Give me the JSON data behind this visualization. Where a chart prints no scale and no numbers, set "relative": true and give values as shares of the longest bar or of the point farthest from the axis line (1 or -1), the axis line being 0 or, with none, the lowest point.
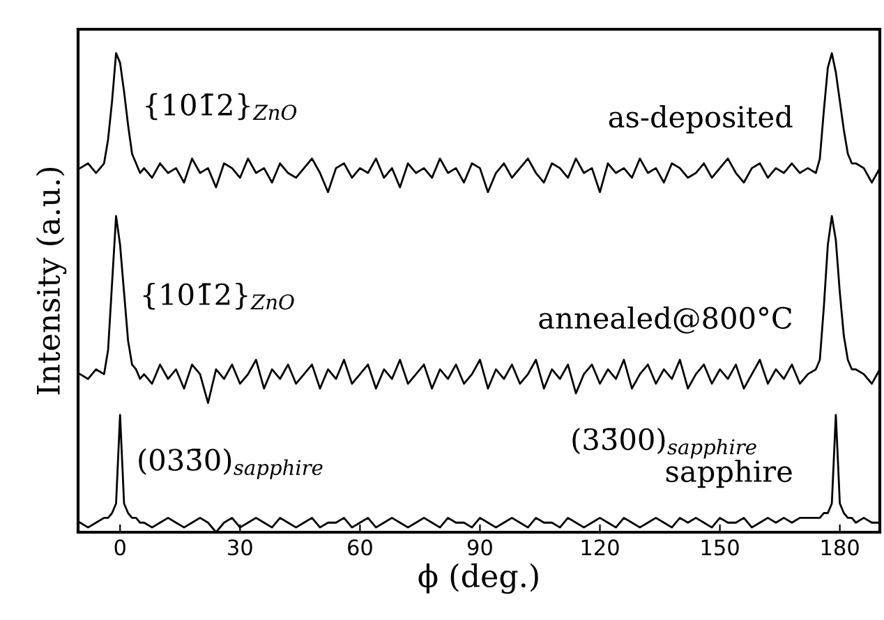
{
  "chart_data": {
    "type": "line",
    "relative": true,
    "xlabel": "ϕ (deg.)",
    "ylabel": "Intensity (a.u.)",
    "xlim": [
      -10.5,
      190
    ],
    "xticks": [
      0,
      30,
      60,
      90,
      120,
      150,
      180
    ],
    "grid": false,
    "marker": "none",
    "line_style": "solid",
    "x": [
      -10,
      -8,
      -6,
      -4,
      -3,
      -2,
      -1,
      0,
      1,
      2,
      3,
      4,
      5,
      6,
      8,
      10,
      12,
      14,
      16,
      18,
      20,
      22,
      24,
      26,
      28,
      30,
      32,
      34,
      36,
      38,
      40,
      42,
      44,
      46,
      48,
      50,
      52,
      54,
      56,
      58,
      60,
      62,
      64,
      66,
      68,
      70,
      72,
      74,
      76,
      78,
      80,
      82,
      84,
      86,
      88,
      90,
      92,
      94,
      96,
      98,
      100,
      102,
      104,
      106,
      108,
      110,
      112,
      114,
      116,
      118,
      120,
      122,
      124,
      126,
      128,
      130,
      132,
      134,
      136,
      138,
      140,
      142,
      144,
      146,
      148,
      150,
      152,
      154,
      156,
      158,
      160,
      162,
      164,
      166,
      168,
      170,
      172,
      174,
      175,
      176,
      177,
      178,
      179,
      180,
      181,
      182,
      183,
      184,
      186,
      188,
      190
    ],
    "series": [
      {
        "name": "as-deposited",
        "color": "#000000",
        "values": [
          0.76,
          0.77,
          0.75,
          0.77,
          0.82,
          0.9,
          1.0,
          0.98,
          0.92,
          0.85,
          0.79,
          0.77,
          0.75,
          0.76,
          0.74,
          0.77,
          0.75,
          0.76,
          0.73,
          0.78,
          0.75,
          0.76,
          0.72,
          0.77,
          0.76,
          0.74,
          0.78,
          0.75,
          0.76,
          0.73,
          0.77,
          0.75,
          0.74,
          0.76,
          0.78,
          0.75,
          0.71,
          0.76,
          0.77,
          0.74,
          0.76,
          0.75,
          0.78,
          0.74,
          0.76,
          0.72,
          0.77,
          0.75,
          0.76,
          0.74,
          0.78,
          0.75,
          0.76,
          0.73,
          0.77,
          0.76,
          0.71,
          0.75,
          0.77,
          0.74,
          0.76,
          0.78,
          0.75,
          0.73,
          0.77,
          0.76,
          0.74,
          0.78,
          0.75,
          0.76,
          0.71,
          0.77,
          0.75,
          0.76,
          0.74,
          0.78,
          0.75,
          0.76,
          0.73,
          0.77,
          0.76,
          0.74,
          0.75,
          0.77,
          0.74,
          0.76,
          0.78,
          0.75,
          0.73,
          0.76,
          0.77,
          0.74,
          0.76,
          0.75,
          0.77,
          0.75,
          0.76,
          0.75,
          0.78,
          0.88,
          0.97,
          1.0,
          0.96,
          0.9,
          0.84,
          0.79,
          0.77,
          0.77,
          0.76,
          0.73,
          0.76
        ]
      },
      {
        "name": "annealed@800°C",
        "color": "#000000",
        "values": [
          0.33,
          0.32,
          0.34,
          0.33,
          0.38,
          0.52,
          0.66,
          0.6,
          0.5,
          0.4,
          0.35,
          0.34,
          0.32,
          0.33,
          0.31,
          0.35,
          0.32,
          0.34,
          0.3,
          0.35,
          0.33,
          0.27,
          0.34,
          0.32,
          0.35,
          0.31,
          0.33,
          0.36,
          0.3,
          0.34,
          0.32,
          0.35,
          0.31,
          0.33,
          0.35,
          0.3,
          0.34,
          0.32,
          0.36,
          0.31,
          0.33,
          0.35,
          0.3,
          0.34,
          0.32,
          0.36,
          0.31,
          0.33,
          0.35,
          0.3,
          0.34,
          0.32,
          0.35,
          0.31,
          0.33,
          0.36,
          0.3,
          0.34,
          0.32,
          0.35,
          0.31,
          0.33,
          0.36,
          0.3,
          0.34,
          0.32,
          0.35,
          0.29,
          0.33,
          0.35,
          0.31,
          0.34,
          0.32,
          0.36,
          0.3,
          0.33,
          0.35,
          0.31,
          0.34,
          0.32,
          0.36,
          0.3,
          0.33,
          0.35,
          0.31,
          0.34,
          0.32,
          0.35,
          0.3,
          0.33,
          0.36,
          0.31,
          0.34,
          0.32,
          0.35,
          0.31,
          0.33,
          0.34,
          0.36,
          0.47,
          0.6,
          0.66,
          0.61,
          0.5,
          0.41,
          0.36,
          0.34,
          0.34,
          0.33,
          0.31,
          0.34
        ]
      },
      {
        "name": "sapphire",
        "color": "#000000",
        "values": [
          0.02,
          0.01,
          0.02,
          0.03,
          0.03,
          0.04,
          0.06,
          0.245,
          0.06,
          0.04,
          0.03,
          0.03,
          0.02,
          0.02,
          0.01,
          0.02,
          0.03,
          0.02,
          0.01,
          0.02,
          0.03,
          0.02,
          0.0,
          0.02,
          0.03,
          0.01,
          0.02,
          0.03,
          0.02,
          0.01,
          0.03,
          0.02,
          0.01,
          0.02,
          0.03,
          0.01,
          0.02,
          0.02,
          0.03,
          0.01,
          0.02,
          0.03,
          0.01,
          0.02,
          0.03,
          0.02,
          0.01,
          0.02,
          0.03,
          0.02,
          0.01,
          0.03,
          0.02,
          0.02,
          0.01,
          0.03,
          0.02,
          0.01,
          0.02,
          0.03,
          0.02,
          0.01,
          0.03,
          0.02,
          0.02,
          0.01,
          0.03,
          0.02,
          0.01,
          0.02,
          0.03,
          0.02,
          0.01,
          0.03,
          0.02,
          0.01,
          0.02,
          0.03,
          0.02,
          0.01,
          0.03,
          0.02,
          0.03,
          0.02,
          0.01,
          0.03,
          0.02,
          0.02,
          0.03,
          0.01,
          0.02,
          0.03,
          0.02,
          0.03,
          0.02,
          0.03,
          0.03,
          0.03,
          0.03,
          0.04,
          0.04,
          0.06,
          0.245,
          0.06,
          0.04,
          0.03,
          0.03,
          0.02,
          0.03,
          0.02,
          0.02
        ]
      }
    ],
    "annotations": [
      "{101̄2}$_{ZnO}$",
      "{101̄2}$_{ZnO}$",
      "(033̄0)$_{sapphire}$",
      "(33̄00)$_{sapphire}$"
    ]
  }
}
